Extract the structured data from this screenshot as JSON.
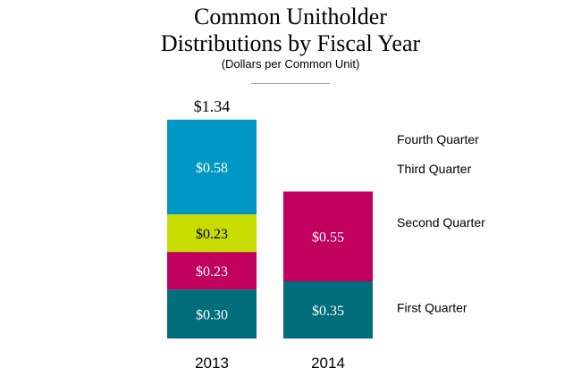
{
  "chart_data": {
    "type": "stacked-bar",
    "title_lines": [
      "Common Unitholder",
      "Distributions by Fiscal Year"
    ],
    "subtitle": "(Dollars per Common Unit)",
    "categories": [
      "2013",
      "2014"
    ],
    "totals": [
      "$1.34",
      ""
    ],
    "legend_placement": "right",
    "stack_order": [
      "First Quarter",
      "Second Quarter",
      "Third Quarter",
      "Fourth Quarter"
    ],
    "bars": [
      {
        "category": "2013",
        "segments": [
          {
            "value": 0.3,
            "label": "$0.30",
            "color": "#006d7b",
            "text_color": "#ffffff"
          },
          {
            "value": 0.23,
            "label": "$0.23",
            "color": "#c1005e",
            "text_color": "#ffffff"
          },
          {
            "value": 0.23,
            "label": "$0.23",
            "color": "#c8dc00",
            "text_color": "#000000"
          },
          {
            "value": 0.58,
            "label": "$0.58",
            "color": "#0097c4",
            "text_color": "#ffffff"
          }
        ]
      },
      {
        "category": "2014",
        "segments": [
          {
            "value": 0.35,
            "label": "$0.35",
            "color": "#006d7b",
            "text_color": "#ffffff"
          },
          {
            "value": 0.55,
            "label": "$0.55",
            "color": "#c1005e",
            "text_color": "#ffffff"
          }
        ]
      }
    ],
    "legend": [
      {
        "name": "Fourth Quarter",
        "value_anchor": 1.22
      },
      {
        "name": "Third Quarter",
        "value_anchor": 1.04
      },
      {
        "name": "Second Quarter",
        "value_anchor": 0.71
      },
      {
        "name": "First Quarter",
        "value_anchor": 0.19
      }
    ],
    "ylim": [
      0,
      1.34
    ],
    "grid": false
  }
}
